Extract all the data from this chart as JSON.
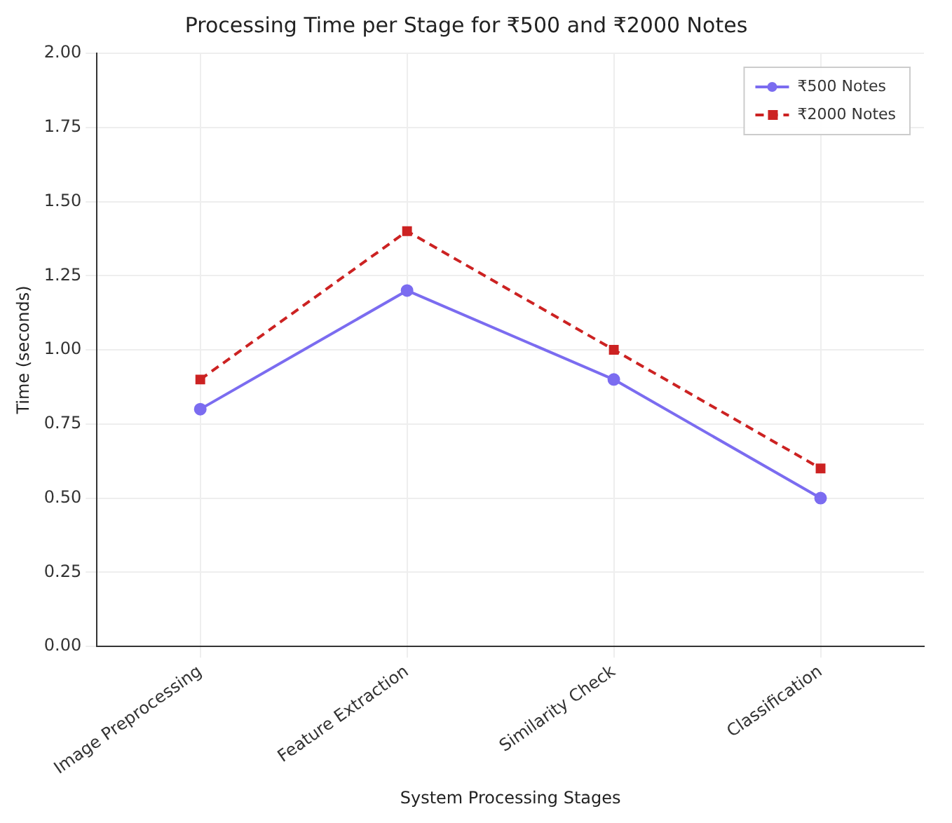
{
  "chart_data": {
    "type": "line",
    "title": "Processing Time per Stage for ₹500 and ₹2000 Notes",
    "xlabel": "System Processing Stages",
    "ylabel": "Time (seconds)",
    "categories": [
      "Image Preprocessing",
      "Feature Extraction",
      "Similarity Check",
      "Classification"
    ],
    "series": [
      {
        "name": "₹500 Notes",
        "color": "#7b6cf0",
        "values": [
          0.8,
          1.2,
          0.9,
          0.5
        ],
        "marker": "circle",
        "line_style": "solid"
      },
      {
        "name": "₹2000 Notes",
        "color": "#cc2222",
        "values": [
          0.9,
          1.4,
          1.0,
          0.6
        ],
        "marker": "square",
        "line_style": "dashed"
      }
    ],
    "ylim": [
      0,
      2
    ],
    "yticks": [
      {
        "value": 0,
        "label": "0.00"
      },
      {
        "value": 0.25,
        "label": "0.25"
      },
      {
        "value": 0.5,
        "label": "0.50"
      },
      {
        "value": 0.75,
        "label": "0.75"
      },
      {
        "value": 1,
        "label": "1.00"
      },
      {
        "value": 1.25,
        "label": "1.25"
      },
      {
        "value": 1.5,
        "label": "1.50"
      },
      {
        "value": 1.75,
        "label": "1.75"
      },
      {
        "value": 2,
        "label": "2.00"
      }
    ],
    "grid": true,
    "legend": "top right"
  }
}
